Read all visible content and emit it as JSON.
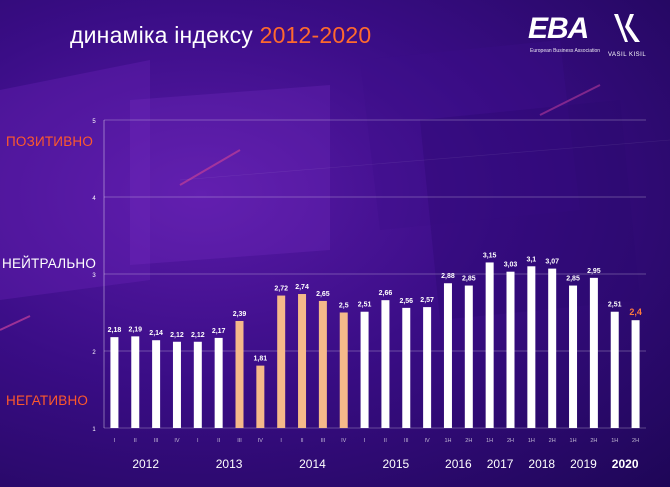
{
  "header": {
    "title_text": "динаміка індексу",
    "title_years": "2012-2020"
  },
  "logos": {
    "eba_text": "EBA",
    "eba_subtitle": "European Business Association",
    "vk_subtitle": "VASIL KISIL"
  },
  "zones": {
    "positive": "ПОЗИТИВНО",
    "neutral": "НЕЙТРАЛЬНО",
    "negative": "НЕГАТИВНО"
  },
  "colors": {
    "bar_default": "#ffffff",
    "bar_highlight": "#f5b98a",
    "last_value": "#ff7a3c",
    "accent": "#ff6a2d"
  },
  "chart_data": {
    "type": "bar",
    "ylim": [
      1,
      5
    ],
    "yticks": [
      "1",
      "2",
      "3",
      "4",
      "5"
    ],
    "grid": true,
    "categories": [
      "I",
      "II",
      "III",
      "IV",
      "I",
      "II",
      "III",
      "IV",
      "I",
      "II",
      "III",
      "IV",
      "I",
      "II",
      "III",
      "IV",
      "1H",
      "2H",
      "1H",
      "2H",
      "1H",
      "2H",
      "1H",
      "2H",
      "1H",
      "2H"
    ],
    "values": [
      2.18,
      2.19,
      2.14,
      2.12,
      2.12,
      2.17,
      2.39,
      1.81,
      2.72,
      2.74,
      2.65,
      2.5,
      2.51,
      2.66,
      2.56,
      2.57,
      2.88,
      2.85,
      3.15,
      3.03,
      3.1,
      3.07,
      2.85,
      2.95,
      2.51,
      2.4
    ],
    "value_labels": [
      "2,18",
      "2,19",
      "2,14",
      "2,12",
      "2,12",
      "2,17",
      "2,39",
      "1,81",
      "2,72",
      "2,74",
      "2,65",
      "2,5",
      "2,51",
      "2,66",
      "2,56",
      "2,57",
      "2,88",
      "2,85",
      "3,15",
      "3,03",
      "3,1",
      "3,07",
      "2,85",
      "2,95",
      "2,51",
      "2,4"
    ],
    "highlighted": [
      6,
      7,
      8,
      9,
      10,
      11
    ],
    "year_labels": [
      {
        "label": "2012",
        "from": 0,
        "to": 3
      },
      {
        "label": "2013",
        "from": 4,
        "to": 7
      },
      {
        "label": "2014",
        "from": 8,
        "to": 11
      },
      {
        "label": "2015",
        "from": 12,
        "to": 15
      },
      {
        "label": "2016",
        "from": 16,
        "to": 17
      },
      {
        "label": "2017",
        "from": 18,
        "to": 19
      },
      {
        "label": "2018",
        "from": 20,
        "to": 21
      },
      {
        "label": "2019",
        "from": 22,
        "to": 23
      },
      {
        "label": "2020",
        "from": 24,
        "to": 25
      }
    ]
  }
}
